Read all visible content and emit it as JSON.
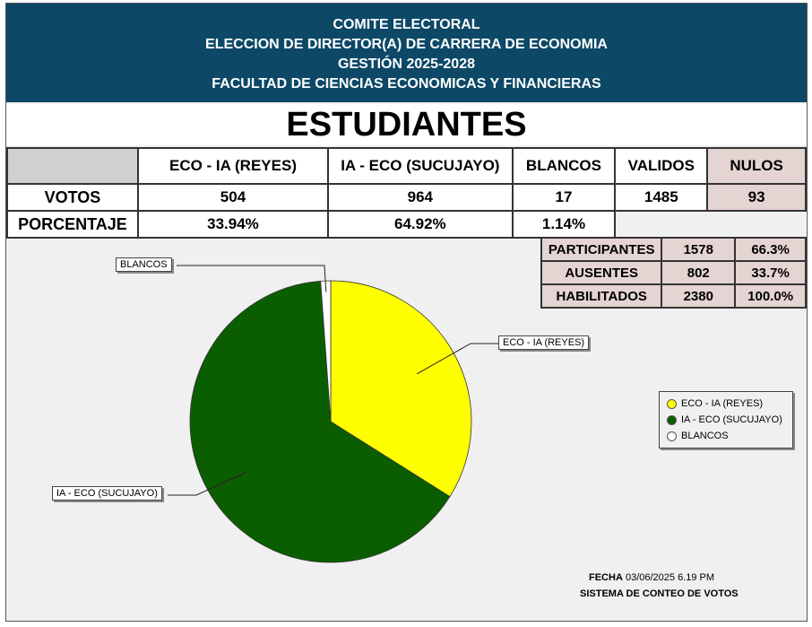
{
  "header": {
    "line1": "COMITE ELECTORAL",
    "line2": "ELECCION DE DIRECTOR(A) DE CARRERA DE ECONOMIA",
    "line3": "GESTIÓN 2025-2028",
    "line4": "FACULTAD DE CIENCIAS ECONOMICAS Y FINANCIERAS",
    "bg_color": "#0d4866"
  },
  "title": "ESTUDIANTES",
  "results": {
    "headers": [
      "ECO - IA (REYES)",
      "IA - ECO (SUCUJAYO)",
      "BLANCOS",
      "VALIDOS",
      "NULOS"
    ],
    "votos_label": "VOTOS",
    "votos": [
      "504",
      "964",
      "17",
      "1485",
      "93"
    ],
    "porcentaje_label": "PORCENTAJE",
    "porcentaje": [
      "33.94%",
      "64.92%",
      "1.14%"
    ]
  },
  "participation": {
    "rows": [
      {
        "label": "PARTICIPANTES",
        "count": "1578",
        "pct": "66.3%"
      },
      {
        "label": "AUSENTES",
        "count": "802",
        "pct": "33.7%"
      },
      {
        "label": "HABILITADOS",
        "count": "2380",
        "pct": "100.0%"
      }
    ]
  },
  "chart_data": {
    "type": "pie",
    "categories": [
      "ECO - IA (REYES)",
      "IA - ECO (SUCUJAYO)",
      "BLANCOS"
    ],
    "values": [
      504,
      964,
      17
    ],
    "colors": [
      "#ffff00",
      "#0b5e00",
      "#ffffff"
    ],
    "legend_position": "right"
  },
  "footer": {
    "fecha_label": "FECHA",
    "fecha_value": "03/06/2025 6.19 PM",
    "system": "SISTEMA DE CONTEO DE VOTOS"
  }
}
